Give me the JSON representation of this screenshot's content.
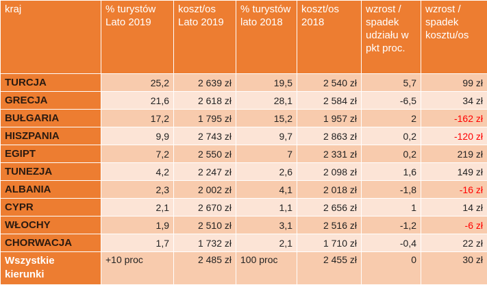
{
  "headers": [
    "kraj",
    "% turystów Lato 2019",
    "koszt/os Lato 2019",
    "% turystów lato 2018",
    "koszt/os 2018",
    "wzrost / spadek udziału w pkt proc.",
    "wzrost / spadek kosztu/os"
  ],
  "rows": [
    [
      "TURCJA",
      "25,2",
      "2 639 zł",
      "19,5",
      "2 540 zł",
      "5,7",
      "99 zł"
    ],
    [
      "GRECJA",
      "21,6",
      "2 618 zł",
      "28,1",
      "2 584 zł",
      "-6,5",
      "34 zł"
    ],
    [
      "BUŁGARIA",
      "17,2",
      "1 795 zł",
      "15,2",
      "1 957 zł",
      "2",
      "-162 zł"
    ],
    [
      "HISZPANIA",
      "9,9",
      "2 743 zł",
      "9,7",
      "2 863 zł",
      "0,2",
      "-120 zł"
    ],
    [
      "EGIPT",
      "7,2",
      "2 550 zł",
      "7",
      "2 331 zł",
      "0,2",
      "219 zł"
    ],
    [
      "TUNEZJA",
      "4,2",
      "2 247 zł",
      "2,6",
      "2 098 zł",
      "1,6",
      "149 zł"
    ],
    [
      "ALBANIA",
      "2,3",
      "2 002 zł",
      "4,1",
      "2 018 zł",
      "-1,8",
      "-16 zł"
    ],
    [
      "CYPR",
      "2,1",
      "2 670 zł",
      "1,1",
      "2 656 zł",
      "1",
      "14 zł"
    ],
    [
      "WŁOCHY",
      "1,9",
      "2 510 zł",
      "3,1",
      "2 516 zł",
      "-1,2",
      "-6 zł"
    ],
    [
      "CHORWACJA",
      "1,7",
      "1 732 zł",
      "2,1",
      "1 710 zł",
      "-0,4",
      "22 zł"
    ]
  ],
  "total": [
    "Wszystkie kierunki",
    "+10 proc",
    "2 485 zł",
    "100 proc",
    "2 455 zł",
    "0",
    "30 zł"
  ],
  "colors": {
    "header": "#ed7d31",
    "row_odd": "#f8cbad",
    "row_even": "#fce4d6",
    "negative": "#ff0000"
  }
}
